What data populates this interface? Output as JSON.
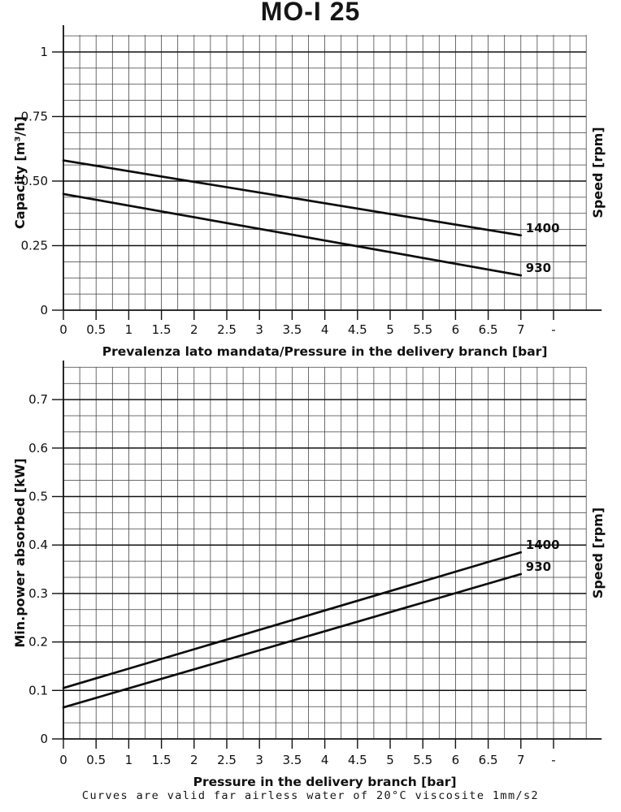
{
  "page": {
    "title": "MO-I 25",
    "footer": "Curves are valid far airless water of 20°C viscosite 1mm/s2"
  },
  "chart_data": [
    {
      "id": "capacity-vs-pressure",
      "type": "line",
      "title": "MO-I 25",
      "xlabel": "Prevalenza lato mandata/Pressure in the delivery branch [bar]",
      "ylabel": "Capacity [m³/h]",
      "ylabel_right": "Speed [rpm]",
      "xlim": [
        0,
        8
      ],
      "ylim": [
        0,
        1.07
      ],
      "xticks": [
        0,
        0.5,
        1,
        1.5,
        2,
        2.5,
        3,
        3.5,
        4,
        4.5,
        5,
        5.5,
        6,
        6.5,
        7,
        7.5
      ],
      "xtick_labels": [
        "0",
        "0.5",
        "1",
        "1.5",
        "2",
        "2.5",
        "3",
        "3.5",
        "4",
        "4.5",
        "5",
        "5.5",
        "6",
        "6.5",
        "7",
        "-"
      ],
      "yticks": [
        0,
        0.25,
        0.5,
        0.75,
        1
      ],
      "ytick_labels": [
        "0",
        "0.25",
        "0.50",
        "0.75",
        "1"
      ],
      "x_minor_step": 0.25,
      "y_minor_step": 0.0625,
      "grid": "on",
      "legend_position": "line-end",
      "series": [
        {
          "name": "1400",
          "rpm": 1400,
          "points": [
            [
              0,
              0.58
            ],
            [
              7,
              0.29
            ]
          ]
        },
        {
          "name": "930",
          "rpm": 930,
          "points": [
            [
              0,
              0.45
            ],
            [
              7,
              0.135
            ]
          ]
        }
      ]
    },
    {
      "id": "power-vs-pressure",
      "type": "line",
      "title": "",
      "xlabel": "Pressure in the delivery branch [bar]",
      "ylabel": "Min.power absorbed [kW]",
      "ylabel_right": "Speed [rpm]",
      "xlim": [
        0,
        8
      ],
      "ylim": [
        0,
        0.77
      ],
      "xticks": [
        0,
        0.5,
        1,
        1.5,
        2,
        2.5,
        3,
        3.5,
        4,
        4.5,
        5,
        5.5,
        6,
        6.5,
        7,
        7.5
      ],
      "xtick_labels": [
        "0",
        "0.5",
        "1",
        "1.5",
        "2",
        "2.5",
        "3",
        "3.5",
        "4",
        "4.5",
        "5",
        "5.5",
        "6",
        "6.5",
        "7",
        "-"
      ],
      "yticks": [
        0,
        0.1,
        0.2,
        0.3,
        0.4,
        0.5,
        0.6,
        0.7
      ],
      "ytick_labels": [
        "0",
        "0.1",
        "0.2",
        "0.3",
        "0.4",
        "0.5",
        "0.6",
        "0.7"
      ],
      "x_minor_step": 0.25,
      "y_minor_step": 0.0333333,
      "grid": "on",
      "legend_position": "line-end",
      "series": [
        {
          "name": "1400",
          "rpm": 1400,
          "points": [
            [
              0,
              0.105
            ],
            [
              7,
              0.385
            ]
          ]
        },
        {
          "name": "930",
          "rpm": 930,
          "points": [
            [
              0,
              0.065
            ],
            [
              7,
              0.34
            ]
          ]
        }
      ]
    }
  ]
}
